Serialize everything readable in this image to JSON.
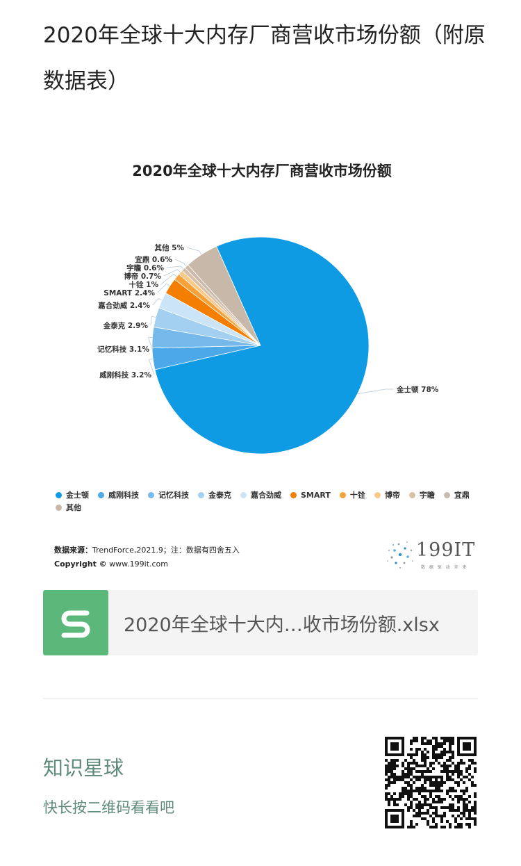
{
  "page": {
    "title": "2020年全球十大内存厂商营收市场份额（附原数据表）"
  },
  "chart_data": {
    "type": "pie",
    "title": "2020年全球十大内存厂商营收市场份额",
    "slices": [
      {
        "label": "金士顿",
        "value": 78,
        "display": "78%",
        "color": "#0f9be4"
      },
      {
        "label": "威刚科技",
        "value": 3.2,
        "display": "3.2%",
        "color": "#4ca8e6"
      },
      {
        "label": "记忆科技",
        "value": 3.1,
        "display": "3.1%",
        "color": "#74b9ea"
      },
      {
        "label": "金泰克",
        "value": 2.9,
        "display": "2.9%",
        "color": "#a3cff1"
      },
      {
        "label": "嘉合劲威",
        "value": 2.4,
        "display": "2.4%",
        "color": "#cbe4f7"
      },
      {
        "label": "SMART",
        "value": 2.4,
        "display": "2.4%",
        "color": "#f47e00"
      },
      {
        "label": "十铨",
        "value": 1,
        "display": "1%",
        "color": "#f6a23a"
      },
      {
        "label": "博帝",
        "value": 0.7,
        "display": "0.7%",
        "color": "#f9c98a"
      },
      {
        "label": "宇瞻",
        "value": 0.6,
        "display": "0.6%",
        "color": "#d8bfa6"
      },
      {
        "label": "宜鼎",
        "value": 0.6,
        "display": "0.6%",
        "color": "#cbb9aa"
      },
      {
        "label": "其他",
        "value": 5,
        "display": "5%",
        "color": "#c7b8aa"
      }
    ],
    "legend_placement": "bottom"
  },
  "source": {
    "label": "数据来源：",
    "text": "TrendForce,2021.9；注：数据有四舍五入",
    "copyright_label": "Copyright ©",
    "copyright_text": " www.199it.com"
  },
  "brand": {
    "name": "199IT",
    "slogan": "数 据 驱 动 未 来"
  },
  "file": {
    "name": "2020年全球十大内…收市场份额.xlsx",
    "icon": "wps-spreadsheet-icon"
  },
  "promo": {
    "title": "知识星球",
    "subtitle": "快长按二维码看看吧",
    "qr_icon": "qr-code-icon"
  }
}
